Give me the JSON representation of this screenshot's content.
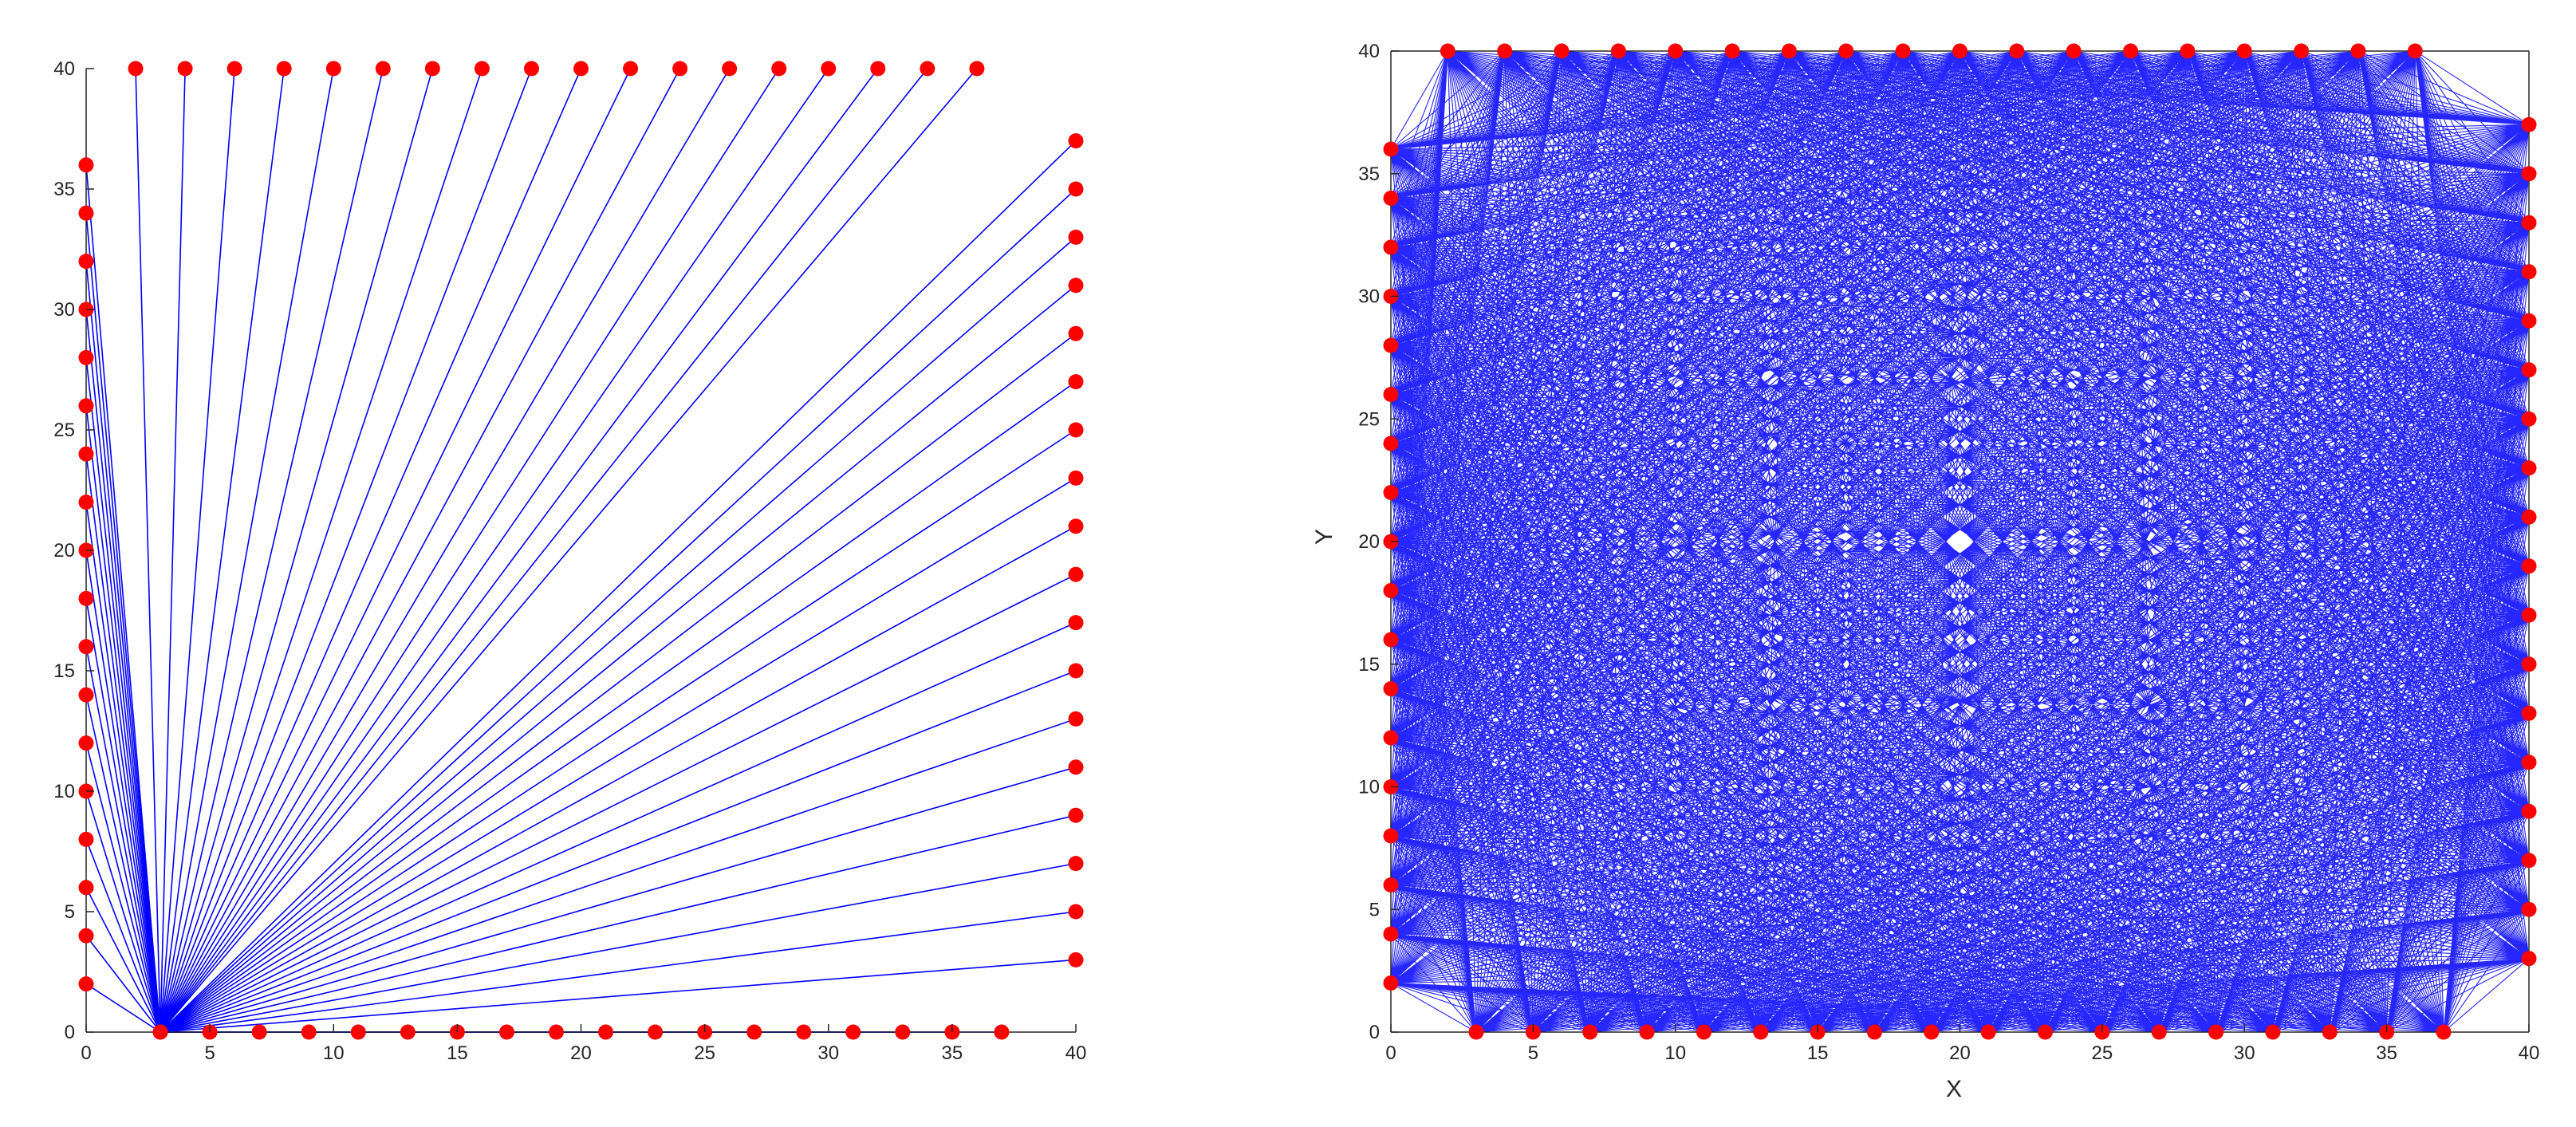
{
  "chart_data": [
    {
      "type": "line",
      "title": "",
      "xlabel": "",
      "ylabel": "",
      "xlim": [
        0,
        40
      ],
      "ylim": [
        0,
        40
      ],
      "xticks": [
        0,
        5,
        10,
        15,
        20,
        25,
        30,
        35,
        40
      ],
      "yticks": [
        0,
        5,
        10,
        15,
        20,
        25,
        30,
        35,
        40
      ],
      "grid": false,
      "box": false,
      "line_color": "#0000ff",
      "marker_color": "#ff0000",
      "hub": [
        3,
        0
      ],
      "points": {
        "left_edge_y": [
          2,
          4,
          6,
          8,
          10,
          12,
          14,
          16,
          18,
          20,
          22,
          24,
          26,
          28,
          30,
          32,
          34,
          36
        ],
        "top_edge_x": [
          2,
          4,
          6,
          8,
          10,
          12,
          14,
          16,
          18,
          20,
          22,
          24,
          26,
          28,
          30,
          32,
          34,
          36
        ],
        "right_edge_y": [
          3,
          5,
          7,
          9,
          11,
          13,
          15,
          17,
          19,
          21,
          23,
          25,
          27,
          29,
          31,
          33,
          35,
          37
        ],
        "bottom_edge_x": [
          3,
          5,
          7,
          9,
          11,
          13,
          15,
          17,
          19,
          21,
          23,
          25,
          27,
          29,
          31,
          33,
          35,
          37
        ]
      }
    },
    {
      "type": "line",
      "title": "",
      "xlabel": "X",
      "ylabel": "Y",
      "xlim": [
        0,
        40
      ],
      "ylim": [
        0,
        40
      ],
      "xticks": [
        0,
        5,
        10,
        15,
        20,
        25,
        30,
        35,
        40
      ],
      "yticks": [
        0,
        5,
        10,
        15,
        20,
        25,
        30,
        35,
        40
      ],
      "grid": false,
      "box": true,
      "line_color": "#0000ff",
      "marker_color": "#ff0000",
      "connect": "all-to-all",
      "points": {
        "left_edge_y": [
          2,
          4,
          6,
          8,
          10,
          12,
          14,
          16,
          18,
          20,
          22,
          24,
          26,
          28,
          30,
          32,
          34,
          36
        ],
        "top_edge_x": [
          2,
          4,
          6,
          8,
          10,
          12,
          14,
          16,
          18,
          20,
          22,
          24,
          26,
          28,
          30,
          32,
          34,
          36
        ],
        "right_edge_y": [
          3,
          5,
          7,
          9,
          11,
          13,
          15,
          17,
          19,
          21,
          23,
          25,
          27,
          29,
          31,
          33,
          35,
          37
        ],
        "bottom_edge_x": [
          3,
          5,
          7,
          9,
          11,
          13,
          15,
          17,
          19,
          21,
          23,
          25,
          27,
          29,
          31,
          33,
          35,
          37
        ]
      }
    }
  ]
}
